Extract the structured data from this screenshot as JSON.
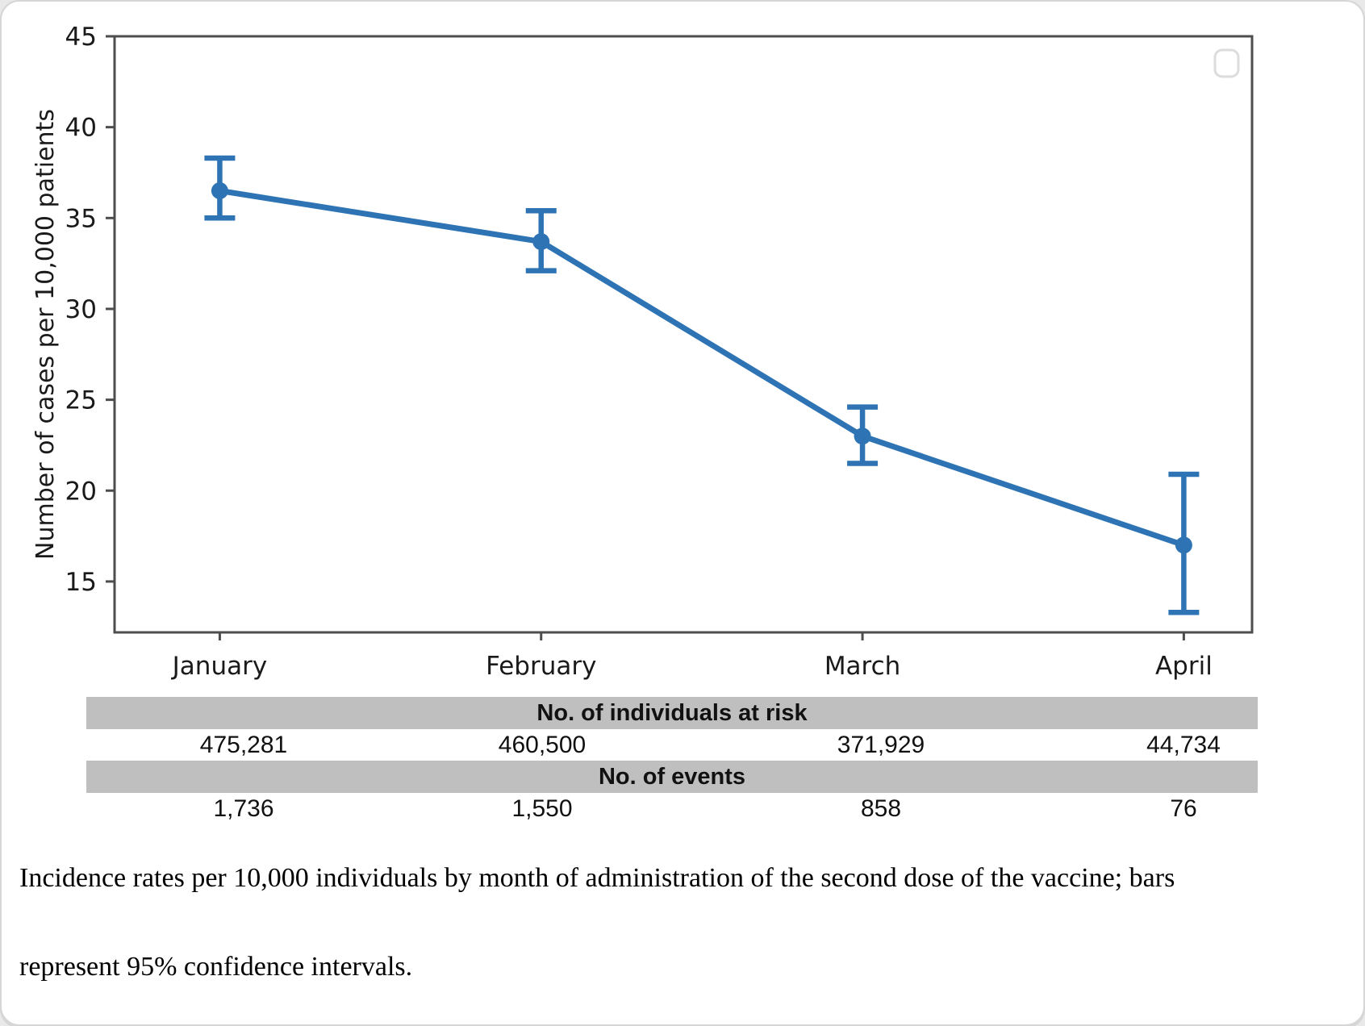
{
  "chart_data": {
    "type": "line",
    "title": "",
    "categories": [
      "January",
      "February",
      "March",
      "April"
    ],
    "series": [
      {
        "name": "incidence-rate",
        "values": [
          36.5,
          33.7,
          23.0,
          17.0
        ],
        "ci_low": [
          35.0,
          32.1,
          21.5,
          13.3
        ],
        "ci_high": [
          38.3,
          35.4,
          24.6,
          20.9
        ]
      }
    ],
    "xlabel": "",
    "ylabel": "Number of cases per 10,000 patients",
    "ylim": [
      12.2,
      45
    ],
    "yticks": [
      15,
      20,
      25,
      30,
      35,
      40,
      45
    ],
    "grid": false,
    "legend": {
      "visible": true,
      "label": "",
      "position": "top-right"
    },
    "error_bars": "95% confidence intervals"
  },
  "colors": {
    "line": "#2e74b5",
    "axis": "#4d4d4d",
    "tick_text": "#1a1a1a",
    "table_band": "#bfbfbf",
    "legend_border": "#dcdcdc"
  },
  "table": {
    "rows": [
      {
        "header": "No. of individuals at risk",
        "values": [
          "475,281",
          "460,500",
          "371,929",
          "44,734"
        ]
      },
      {
        "header": "No. of events",
        "values": [
          "1,736",
          "1,550",
          "858",
          "76"
        ]
      }
    ]
  },
  "caption": {
    "line1": "Incidence rates per 10,000 individuals by month of administration of the second dose of the vaccine; bars",
    "line2": "represent 95% confidence intervals."
  }
}
